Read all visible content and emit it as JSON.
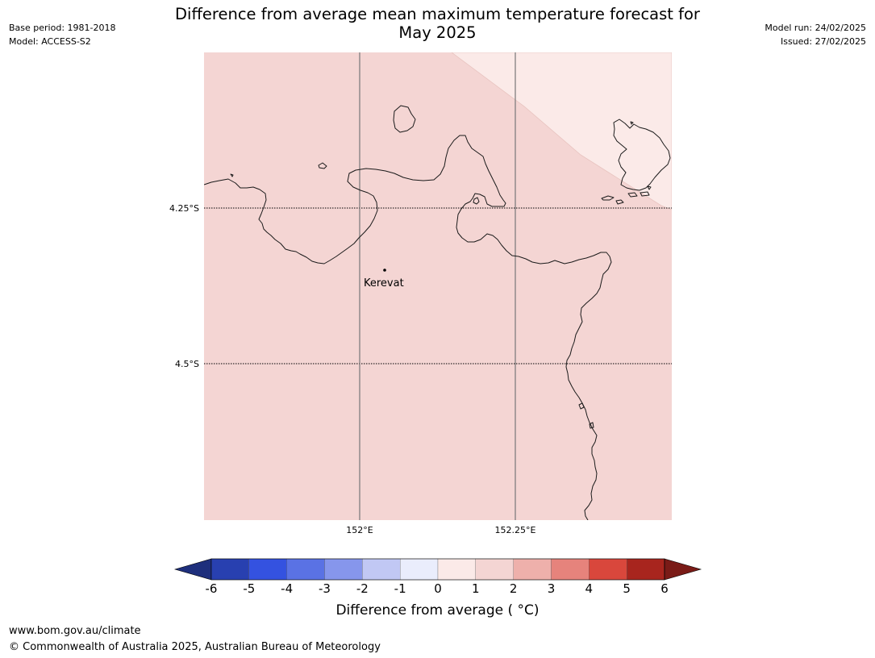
{
  "header": {
    "title_line1": "Difference from average mean maximum temperature forecast for",
    "title_line2": "May 2025",
    "base_period": "Base period: 1981-2018",
    "model": "Model: ACCESS-S2",
    "model_run": "Model run: 24/02/2025",
    "issued": "Issued: 27/02/2025"
  },
  "map": {
    "lat_labels": [
      "4.25°S",
      "4.5°S"
    ],
    "lon_labels": [
      "152°E",
      "152.25°E"
    ],
    "place": {
      "name": "Kerevat"
    },
    "fill_colors": {
      "main": "#f4d5d3",
      "upper_right": "#fbeae8"
    },
    "coast_color": "#1a1a1a"
  },
  "colorbar": {
    "title": "Difference from average ( °C)",
    "tick_labels": [
      "-6",
      "-5",
      "-4",
      "-3",
      "-2",
      "-1",
      "0",
      "1",
      "2",
      "3",
      "4",
      "5",
      "6"
    ],
    "under_color": "#1e2f7c",
    "over_color": "#7a1b17",
    "colors": [
      "#2840b0",
      "#3452e0",
      "#5a72e4",
      "#8696ec",
      "#c1c8f4",
      "#eaedfc",
      "#fbeae8",
      "#f4d5d3",
      "#eeb0ab",
      "#e6837c",
      "#d9473c",
      "#a8251e"
    ]
  },
  "footer": {
    "url": "www.bom.gov.au/climate",
    "copyright": "© Commonwealth of Australia 2025, Australian Bureau of Meteorology"
  }
}
